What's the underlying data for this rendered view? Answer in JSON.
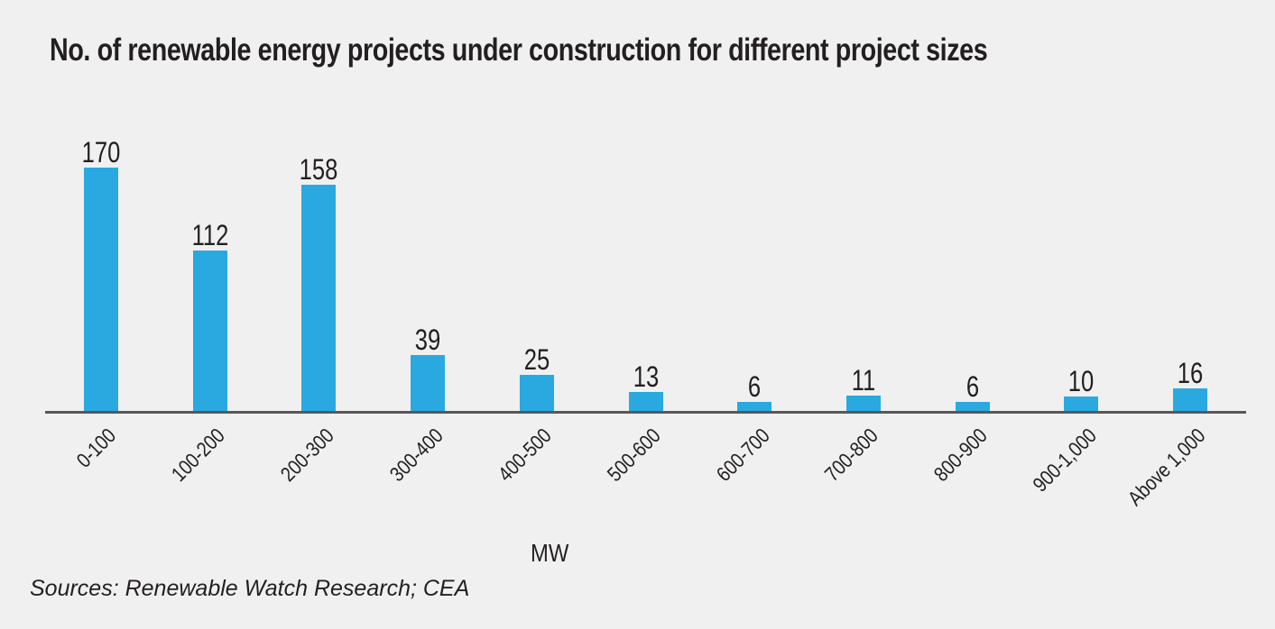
{
  "title": "No. of renewable energy projects under construction for different project sizes",
  "chart_data": {
    "type": "bar",
    "title": "No. of renewable energy projects under construction for different project sizes",
    "categories": [
      "0-100",
      "100-200",
      "200-300",
      "300-400",
      "400-500",
      "500-600",
      "600-700",
      "700-800",
      "800-900",
      "900-1,000",
      "Above 1,000"
    ],
    "values": [
      170,
      112,
      158,
      39,
      25,
      13,
      6,
      11,
      6,
      10,
      16
    ],
    "xlabel": "MW",
    "ylabel": "",
    "ylim": [
      0,
      180
    ],
    "grid": false,
    "legend": false,
    "data_labels": true,
    "bar_color": "#29A9E0"
  },
  "source_note": "Sources: Renewable Watch Research; CEA",
  "colors": {
    "background": "#F0F0F1",
    "bar": "#29A9E0",
    "axis_line": "#58585A",
    "text": "#231F20"
  }
}
